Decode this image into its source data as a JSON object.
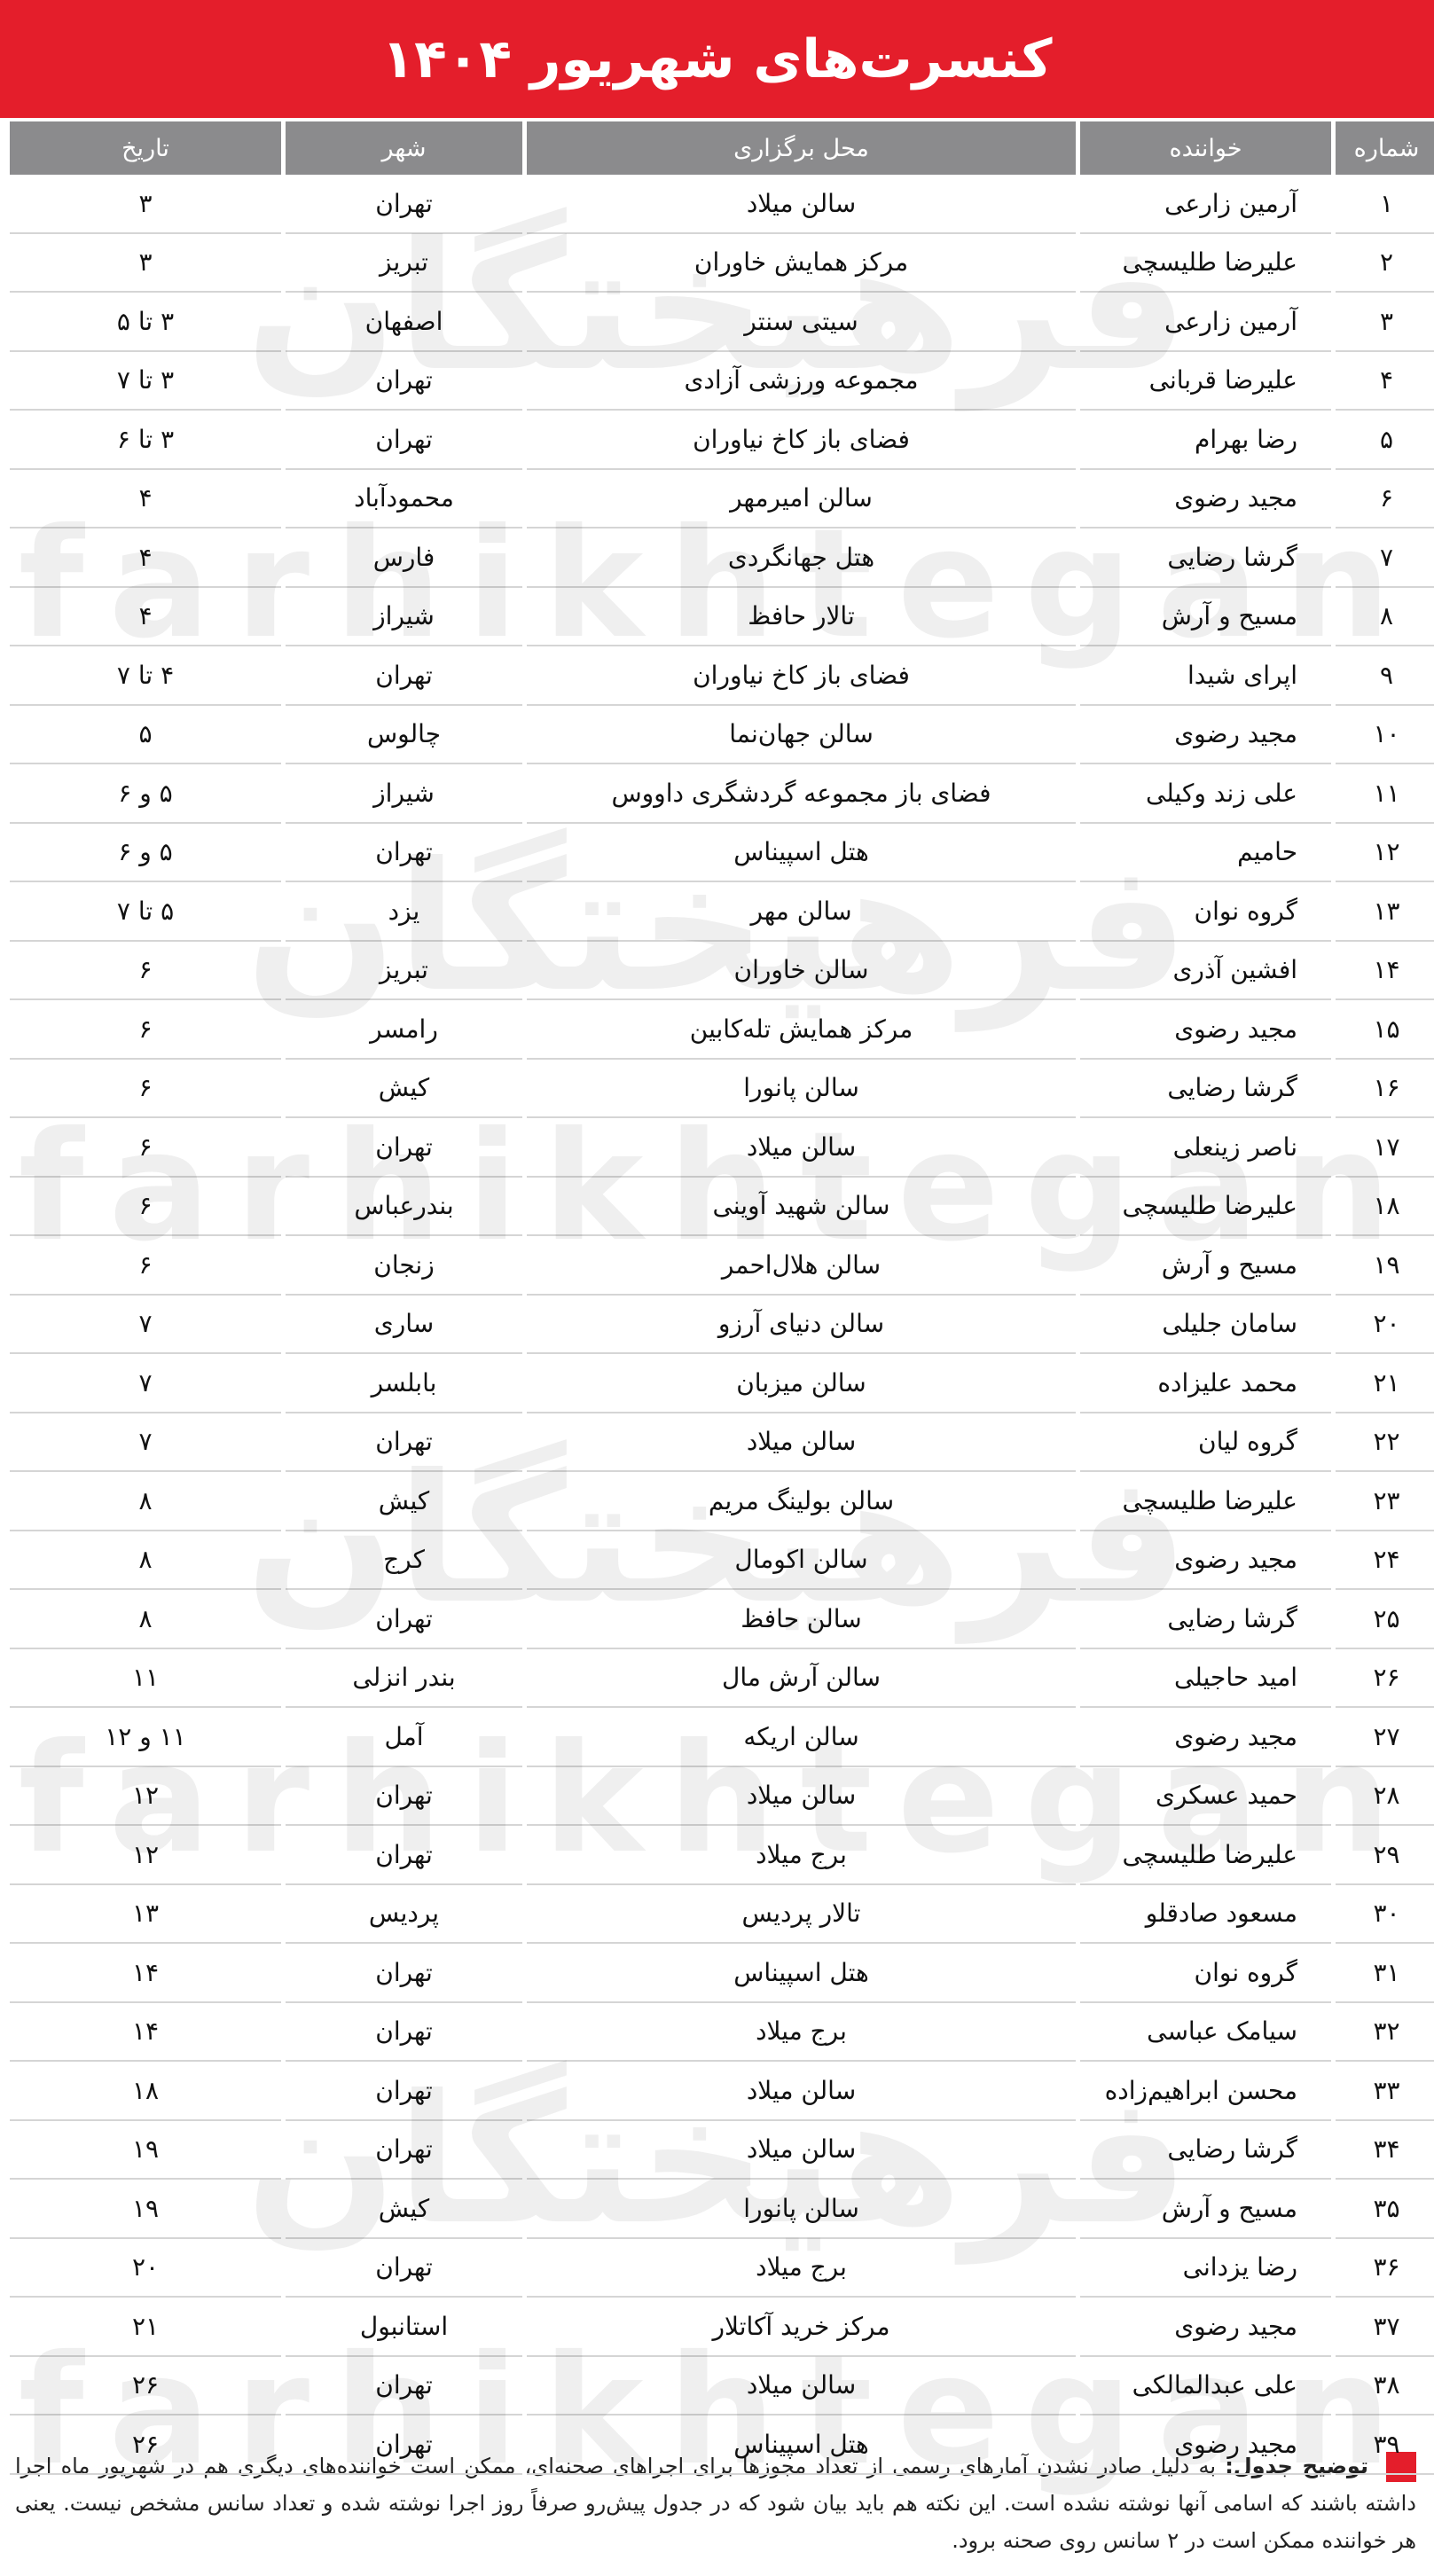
{
  "header": {
    "title": "کنسرت‌های شهریور ۱۴۰۴"
  },
  "watermark": {
    "persian": "فرهیختگان",
    "latin": "farhikhtegan"
  },
  "table": {
    "columns": [
      "شماره",
      "خواننده",
      "محل برگزاری",
      "شهر",
      "تاریخ"
    ],
    "rows": [
      [
        "۱",
        "آرمین زارعی",
        "سالن میلاد",
        "تهران",
        "۳"
      ],
      [
        "۲",
        "علیرضا طلیسچی",
        "مرکز همایش خاوران",
        "تبریز",
        "۳"
      ],
      [
        "۳",
        "آرمین زارعی",
        "سیتی سنتر",
        "اصفهان",
        "۳ تا ۵"
      ],
      [
        "۴",
        "علیرضا قربانی",
        "مجموعه ورزشی آزادی",
        "تهران",
        "۳ تا ۷"
      ],
      [
        "۵",
        "رضا بهرام",
        "فضای باز کاخ نیاوران",
        "تهران",
        "۳ تا ۶"
      ],
      [
        "۶",
        "مجید رضوی",
        "سالن امیرمهر",
        "محمودآباد",
        "۴"
      ],
      [
        "۷",
        "گرشا رضایی",
        "هتل جهانگردی",
        "فارس",
        "۴"
      ],
      [
        "۸",
        "مسیح و آرش",
        "تالار حافظ",
        "شیراز",
        "۴"
      ],
      [
        "۹",
        "اپرای شیدا",
        "فضای باز کاخ نیاوران",
        "تهران",
        "۴ تا ۷"
      ],
      [
        "۱۰",
        "مجید رضوی",
        "سالن جهان‌نما",
        "چالوس",
        "۵"
      ],
      [
        "۱۱",
        "علی زند وکیلی",
        "فضای باز مجموعه گردشگری داووس",
        "شیراز",
        "۵ و ۶"
      ],
      [
        "۱۲",
        "حامیم",
        "هتل اسپیناس",
        "تهران",
        "۵ و ۶"
      ],
      [
        "۱۳",
        "گروه نوان",
        "سالن مهر",
        "یزد",
        "۵ تا ۷"
      ],
      [
        "۱۴",
        "افشین آذری",
        "سالن خاوران",
        "تبریز",
        "۶"
      ],
      [
        "۱۵",
        "مجید رضوی",
        "مرکز همایش تله‌کابین",
        "رامسر",
        "۶"
      ],
      [
        "۱۶",
        "گرشا رضایی",
        "سالن پانورا",
        "کیش",
        "۶"
      ],
      [
        "۱۷",
        "ناصر زینعلی",
        "سالن میلاد",
        "تهران",
        "۶"
      ],
      [
        "۱۸",
        "علیرضا طلیسچی",
        "سالن شهید آوینی",
        "بندرعباس",
        "۶"
      ],
      [
        "۱۹",
        "مسیح و آرش",
        "سالن هلال‌احمر",
        "زنجان",
        "۶"
      ],
      [
        "۲۰",
        "سامان جلیلی",
        "سالن دنیای آرزو",
        "ساری",
        "۷"
      ],
      [
        "۲۱",
        "محمد علیزاده",
        "سالن میزبان",
        "بابلسر",
        "۷"
      ],
      [
        "۲۲",
        "گروه لیان",
        "سالن میلاد",
        "تهران",
        "۷"
      ],
      [
        "۲۳",
        "علیرضا طلیسچی",
        "سالن بولینگ مریم",
        "کیش",
        "۸"
      ],
      [
        "۲۴",
        "مجید رضوی",
        "سالن اکومال",
        "کرج",
        "۸"
      ],
      [
        "۲۵",
        "گرشا رضایی",
        "سالن حافظ",
        "تهران",
        "۸"
      ],
      [
        "۲۶",
        "امید حاجیلی",
        "سالن آرش مال",
        "بندر انزلی",
        "۱۱"
      ],
      [
        "۲۷",
        "مجید رضوی",
        "سالن اریکه",
        "آمل",
        "۱۱ و ۱۲"
      ],
      [
        "۲۸",
        "حمید عسکری",
        "سالن میلاد",
        "تهران",
        "۱۲"
      ],
      [
        "۲۹",
        "علیرضا طلیسچی",
        "برج میلاد",
        "تهران",
        "۱۲"
      ],
      [
        "۳۰",
        "مسعود صادقلو",
        "تالار پردیس",
        "پردیس",
        "۱۳"
      ],
      [
        "۳۱",
        "گروه نوان",
        "هتل اسپیناس",
        "تهران",
        "۱۴"
      ],
      [
        "۳۲",
        "سیامک عباسی",
        "برج میلاد",
        "تهران",
        "۱۴"
      ],
      [
        "۳۳",
        "محسن ابراهیم‌زاده",
        "سالن میلاد",
        "تهران",
        "۱۸"
      ],
      [
        "۳۴",
        "گرشا رضایی",
        "سالن میلاد",
        "تهران",
        "۱۹"
      ],
      [
        "۳۵",
        "مسیح و آرش",
        "سالن پانورا",
        "کیش",
        "۱۹"
      ],
      [
        "۳۶",
        "رضا یزدانی",
        "برج میلاد",
        "تهران",
        "۲۰"
      ],
      [
        "۳۷",
        "مجید رضوی",
        "مرکز خرید آکاتلار",
        "استانبول",
        "۲۱"
      ],
      [
        "۳۸",
        "علی عبدالمالکی",
        "سالن میلاد",
        "تهران",
        "۲۶"
      ],
      [
        "۳۹",
        "مجید رضوی",
        "هتل اسپیناس",
        "تهران",
        "۲۶"
      ]
    ]
  },
  "footnote": {
    "label": "توضیح جدول:",
    "text": "به دلیل صادر نشدن آمارهای رسمی از تعداد مجوزها برای اجراهای صحنه‌ای، ممکن است خواننده‌های دیگری هم در شهریور ماه اجرا داشته باشند که اسامی آنها نوشته نشده است. این نکته هم باید بیان شود که در جدول پیش‌رو صرفاً روز اجرا نوشته شده و تعداد سانس مشخص نیست. یعنی هر خواننده ممکن است در ۲ سانس روی صحنه برود."
  }
}
